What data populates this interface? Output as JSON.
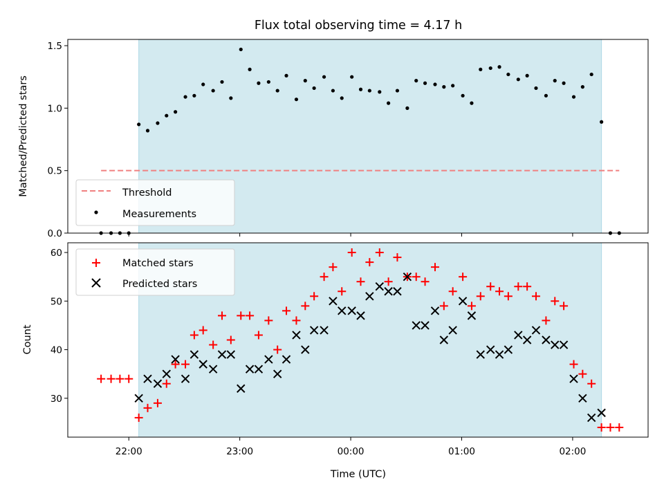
{
  "chart_data": {
    "title": "Flux total observing time = 4.17 h",
    "xlabel": "Time (UTC)",
    "x_tick_labels": [
      "22:00",
      "23:00",
      "00:00",
      "01:00",
      "02:00"
    ],
    "x_tick_hours": [
      22,
      23,
      24,
      25,
      26
    ],
    "xlim": [
      21.45,
      26.68
    ],
    "shaded_interval": [
      22.09,
      26.26
    ],
    "shade_color": "#d3eaf0",
    "panels": [
      {
        "type": "scatter",
        "ylabel": "Matched/Predicted stars",
        "ylim": [
          0,
          1.55
        ],
        "y_ticks": [
          0.0,
          0.5,
          1.0,
          1.5
        ],
        "y_tick_labels": [
          "0.0",
          "0.5",
          "1.0",
          "1.5"
        ],
        "legend": {
          "position": "lower-left",
          "entries": [
            "Threshold",
            "Measurements"
          ]
        },
        "threshold": {
          "name": "Threshold",
          "value": 0.5,
          "x_range": [
            21.75,
            26.42
          ],
          "color": "#f08080"
        },
        "measurements": {
          "name": "Measurements",
          "color": "#000000",
          "x": [
            21.75,
            21.84,
            21.92,
            22.0,
            22.09,
            22.17,
            22.26,
            22.34,
            22.42,
            22.51,
            22.59,
            22.67,
            22.76,
            22.84,
            22.92,
            23.01,
            23.09,
            23.17,
            23.26,
            23.34,
            23.42,
            23.51,
            23.59,
            23.67,
            23.76,
            23.84,
            23.92,
            24.01,
            24.09,
            24.17,
            24.26,
            24.34,
            24.42,
            24.51,
            24.59,
            24.67,
            24.76,
            24.84,
            24.92,
            25.01,
            25.09,
            25.17,
            25.26,
            25.34,
            25.42,
            25.51,
            25.59,
            25.67,
            25.76,
            25.84,
            25.92,
            26.01,
            26.09,
            26.17,
            26.26,
            26.34,
            26.42
          ],
          "y": [
            0.0,
            0.0,
            0.0,
            0.0,
            0.87,
            0.82,
            0.88,
            0.94,
            0.97,
            1.09,
            1.1,
            1.19,
            1.14,
            1.21,
            1.08,
            1.47,
            1.31,
            1.2,
            1.21,
            1.14,
            1.26,
            1.07,
            1.22,
            1.16,
            1.25,
            1.14,
            1.08,
            1.25,
            1.15,
            1.14,
            1.13,
            1.04,
            1.14,
            1.0,
            1.22,
            1.2,
            1.19,
            1.17,
            1.18,
            1.1,
            1.04,
            1.31,
            1.32,
            1.33,
            1.27,
            1.23,
            1.26,
            1.16,
            1.1,
            1.22,
            1.2,
            1.09,
            1.17,
            1.27,
            0.89,
            0.0,
            0.0
          ]
        }
      },
      {
        "type": "scatter",
        "ylabel": "Count",
        "ylim": [
          22,
          62
        ],
        "y_ticks": [
          30,
          40,
          50,
          60
        ],
        "y_tick_labels": [
          "30",
          "40",
          "50",
          "60"
        ],
        "legend": {
          "position": "upper-left",
          "entries": [
            "Matched stars",
            "Predicted stars"
          ]
        },
        "series": [
          {
            "name": "Matched stars",
            "marker": "+",
            "color": "#ff0000",
            "x": [
              21.75,
              21.84,
              21.92,
              22.0,
              22.09,
              22.17,
              22.26,
              22.34,
              22.42,
              22.51,
              22.59,
              22.67,
              22.76,
              22.84,
              22.92,
              23.01,
              23.09,
              23.17,
              23.26,
              23.34,
              23.42,
              23.51,
              23.59,
              23.67,
              23.76,
              23.84,
              23.92,
              24.01,
              24.09,
              24.17,
              24.26,
              24.34,
              24.42,
              24.51,
              24.59,
              24.67,
              24.76,
              24.84,
              24.92,
              25.01,
              25.09,
              25.17,
              25.26,
              25.34,
              25.42,
              25.51,
              25.59,
              25.67,
              25.76,
              25.84,
              25.92,
              26.01,
              26.09,
              26.17,
              26.26,
              26.34,
              26.42
            ],
            "y": [
              34,
              34,
              34,
              34,
              26,
              28,
              29,
              33,
              37,
              37,
              43,
              44,
              41,
              47,
              42,
              47,
              47,
              43,
              46,
              40,
              48,
              46,
              49,
              51,
              55,
              57,
              52,
              60,
              54,
              58,
              60,
              54,
              59,
              55,
              55,
              54,
              57,
              49,
              52,
              55,
              49,
              51,
              53,
              52,
              51,
              53,
              53,
              51,
              46,
              50,
              49,
              37,
              35,
              33,
              24,
              24,
              24
            ]
          },
          {
            "name": "Predicted stars",
            "marker": "x",
            "color": "#000000",
            "x": [
              22.09,
              22.17,
              22.26,
              22.34,
              22.42,
              22.51,
              22.59,
              22.67,
              22.76,
              22.84,
              22.92,
              23.01,
              23.09,
              23.17,
              23.26,
              23.34,
              23.42,
              23.51,
              23.59,
              23.67,
              23.76,
              23.84,
              23.92,
              24.01,
              24.09,
              24.17,
              24.26,
              24.34,
              24.42,
              24.51,
              24.59,
              24.67,
              24.76,
              24.84,
              24.92,
              25.01,
              25.09,
              25.17,
              25.26,
              25.34,
              25.42,
              25.51,
              25.59,
              25.67,
              25.76,
              25.84,
              25.92,
              26.01,
              26.09,
              26.17,
              26.26
            ],
            "y": [
              30,
              34,
              33,
              35,
              38,
              34,
              39,
              37,
              36,
              39,
              39,
              32,
              36,
              36,
              38,
              35,
              38,
              43,
              40,
              44,
              44,
              50,
              48,
              48,
              47,
              51,
              53,
              52,
              52,
              55,
              45,
              45,
              48,
              42,
              44,
              50,
              47,
              39,
              40,
              39,
              40,
              43,
              42,
              44,
              42,
              41,
              41,
              34,
              30,
              26,
              27
            ]
          }
        ]
      }
    ]
  }
}
